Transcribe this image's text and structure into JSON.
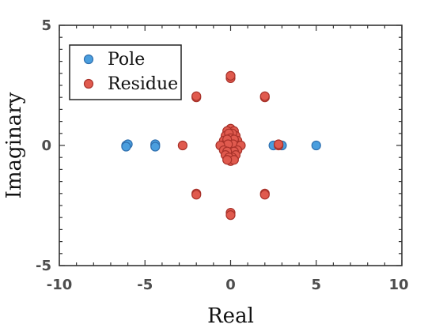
{
  "chart_data": {
    "type": "scatter",
    "title": "",
    "xlabel": "Real",
    "ylabel": "Imaginary",
    "xlim": [
      -10,
      10
    ],
    "ylim": [
      -5,
      5
    ],
    "x_ticks": [
      -10,
      -5,
      0,
      5,
      10
    ],
    "y_ticks": [
      -5,
      0,
      5
    ],
    "x_tick_labels": [
      "-10",
      "-5",
      "0",
      "5",
      "10"
    ],
    "y_tick_labels": [
      "-5",
      "0",
      "5"
    ],
    "grid": false,
    "legend_position": "top-left",
    "series": [
      {
        "name": "Pole",
        "color": "#4a9ede",
        "edge_color": "#2f6fae",
        "points": [
          [
            -6.1,
            0.0
          ],
          [
            -6.0,
            0.05
          ],
          [
            -6.1,
            -0.05
          ],
          [
            -4.4,
            0.0
          ],
          [
            -4.4,
            0.05
          ],
          [
            -4.4,
            -0.05
          ],
          [
            2.5,
            0.0
          ],
          [
            3.0,
            0.0
          ],
          [
            5.0,
            0.0
          ]
        ]
      },
      {
        "name": "Residue",
        "color": "#e05a4e",
        "edge_color": "#a8322a",
        "points": [
          [
            0.0,
            2.8
          ],
          [
            0.0,
            2.9
          ],
          [
            0.0,
            -2.8
          ],
          [
            0.0,
            -2.9
          ],
          [
            -2.0,
            2.0
          ],
          [
            -2.0,
            2.05
          ],
          [
            2.0,
            2.0
          ],
          [
            2.0,
            2.05
          ],
          [
            -2.0,
            -2.0
          ],
          [
            -2.0,
            -2.05
          ],
          [
            2.0,
            -2.0
          ],
          [
            2.0,
            -2.05
          ],
          [
            -2.8,
            0.0
          ],
          [
            2.8,
            0.0
          ],
          [
            2.8,
            0.05
          ],
          [
            0.0,
            0.7
          ],
          [
            0.2,
            0.6
          ],
          [
            -0.2,
            0.6
          ],
          [
            0.3,
            0.4
          ],
          [
            -0.3,
            0.4
          ],
          [
            0.1,
            0.5
          ],
          [
            -0.1,
            0.5
          ],
          [
            0.4,
            0.2
          ],
          [
            -0.4,
            0.2
          ],
          [
            0.0,
            0.3
          ],
          [
            0.2,
            0.25
          ],
          [
            -0.2,
            0.25
          ],
          [
            0.5,
            0.0
          ],
          [
            -0.5,
            0.0
          ],
          [
            0.0,
            0.0
          ],
          [
            0.15,
            0.05
          ],
          [
            -0.15,
            0.05
          ],
          [
            0.6,
            0.0
          ],
          [
            -0.6,
            0.0
          ],
          [
            0.4,
            -0.2
          ],
          [
            -0.4,
            -0.2
          ],
          [
            0.0,
            -0.3
          ],
          [
            0.2,
            -0.25
          ],
          [
            -0.2,
            -0.25
          ],
          [
            0.3,
            -0.4
          ],
          [
            -0.3,
            -0.4
          ],
          [
            0.1,
            -0.5
          ],
          [
            -0.1,
            -0.5
          ],
          [
            0.0,
            -0.65
          ],
          [
            0.2,
            -0.6
          ],
          [
            -0.2,
            -0.6
          ]
        ]
      }
    ]
  }
}
